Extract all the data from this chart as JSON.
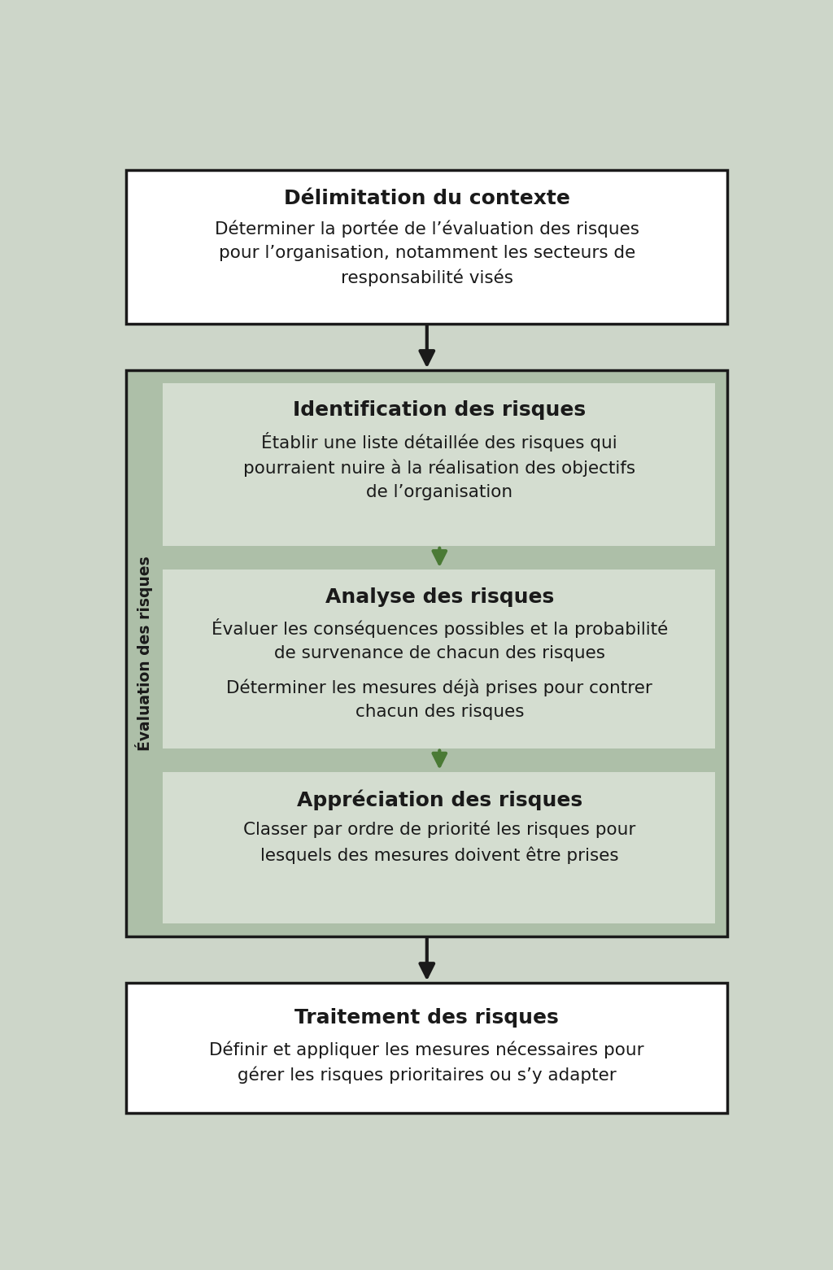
{
  "bg_color": "#cdd6c9",
  "box_white_bg": "#ffffff",
  "box_green_outer_bg": "#adbfa8",
  "box_green_inner_bg": "#d4ddd0",
  "text_color": "#1a1a1a",
  "arrow_dark": "#1a1a1a",
  "arrow_green": "#4a7a35",
  "box1_title": "Délimitation du contexte",
  "box1_body": "Déterminer la portée de l’évaluation des risques\npour l’organisation, notamment les secteurs de\nresponsabilité visés",
  "eval_label": "Évaluation des risques",
  "box2_title": "Identification des risques",
  "box2_body": "Établir une liste détaillée des risques qui\npourraient nuire à la réalisation des objectifs\nde l’organisation",
  "box3_title": "Analyse des risques",
  "box3_body_1": "Évaluer les conséquences possibles et la probabilité\nde survenance de chacun des risques",
  "box3_body_2": "Déterminer les mesures déjà prises pour contrer\nchacun des risques",
  "box4_title": "Appréciation des risques",
  "box4_body": "Classer par ordre de priorité les risques pour\nlesquels des mesures doivent être prises",
  "box5_title": "Traitement des risques",
  "box5_body": "Définir et appliquer les mesures nécessaires pour\ngérer les risques prioritaires ou s’y adapter",
  "title_fontsize": 18,
  "body_fontsize": 15.5
}
